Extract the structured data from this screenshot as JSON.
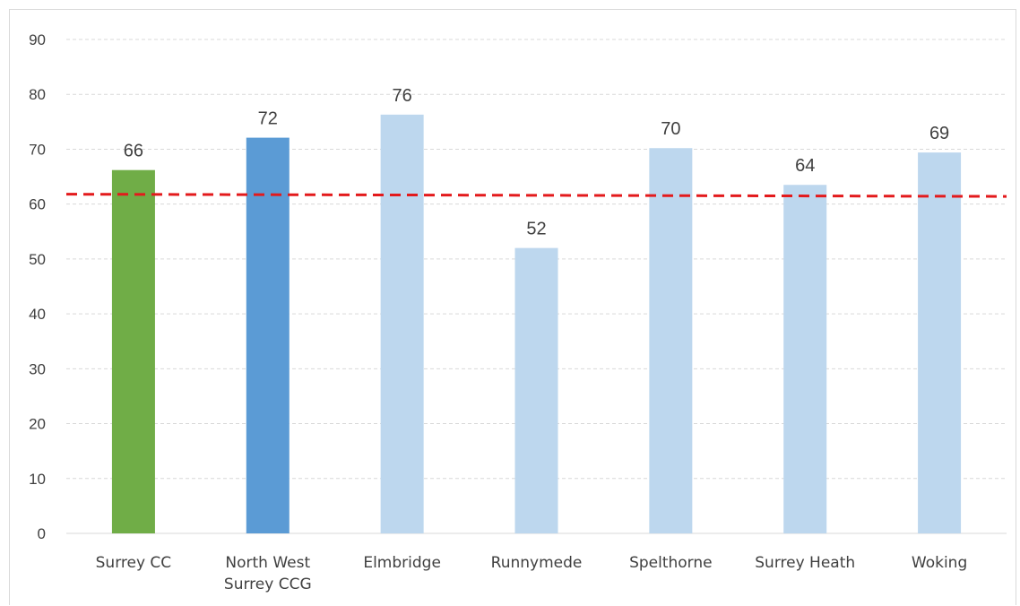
{
  "chart_data": {
    "type": "bar",
    "title": "",
    "xlabel": "",
    "ylabel": "",
    "categories": [
      "Surrey CC",
      "North West Surrey CCG",
      "Elmbridge",
      "Runnymede",
      "Spelthorne",
      "Surrey Heath",
      "Woking"
    ],
    "category_lines": [
      [
        "Surrey CC"
      ],
      [
        "North West",
        "Surrey CCG"
      ],
      [
        "Elmbridge"
      ],
      [
        "Runnymede"
      ],
      [
        "Spelthorne"
      ],
      [
        "Surrey Heath"
      ],
      [
        "Woking"
      ]
    ],
    "values": [
      66.2,
      72.1,
      76.3,
      52.0,
      70.2,
      63.5,
      69.4
    ],
    "data_labels": [
      "66",
      "72",
      "76",
      "52",
      "70",
      "64",
      "69"
    ],
    "bar_colors": [
      "#70ad47",
      "#5b9bd5",
      "#bdd7ee",
      "#bdd7ee",
      "#bdd7ee",
      "#bdd7ee",
      "#bdd7ee"
    ],
    "ylim": [
      0,
      90
    ],
    "yticks": [
      0,
      10,
      20,
      30,
      40,
      50,
      60,
      70,
      80,
      90
    ],
    "grid": true,
    "legend": "none",
    "reference_line": {
      "style": "dashed",
      "color": "#e31a1c",
      "start_value": 61.8,
      "end_value": 61.4
    }
  }
}
